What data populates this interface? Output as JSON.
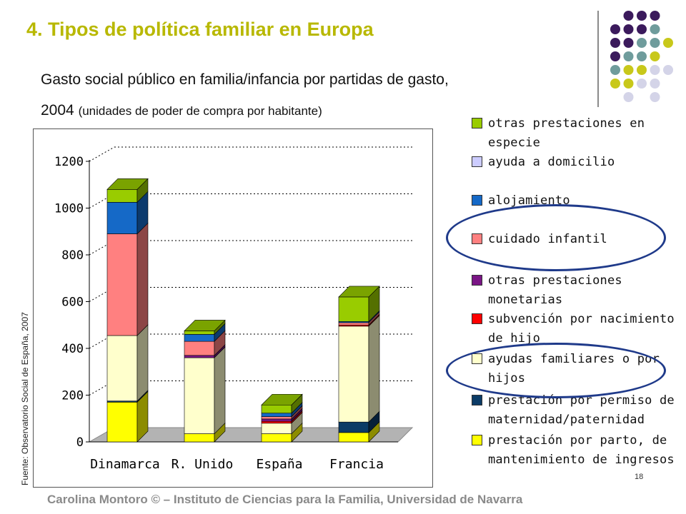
{
  "slide": {
    "title": "4. Tipos de política familiar en Europa",
    "subtitle_line1": "Gasto social público en familia/infancia por partidas de gasto,",
    "subtitle_year": "2004",
    "subtitle_unit": "(unidades de poder de compra por habitante)",
    "source": "Fuente: Observatorio Social de España, 2007",
    "page_number": "18",
    "footer": "Carolina Montoro © – Instituto de Ciencias para la Familia, Universidad de Navarra"
  },
  "colors": {
    "title": "#b8b800",
    "dot_purple": "#3b1a5c",
    "dot_teal": "#6f9c9c",
    "dot_olive": "#c8c81a",
    "dot_lavender": "#d4d4e8",
    "ellipse": "#1f3a8a"
  },
  "chart_data": {
    "type": "bar",
    "stacked": true,
    "three_d": true,
    "ylim": [
      0,
      1200
    ],
    "yticks": [
      0,
      200,
      400,
      600,
      800,
      1000,
      1200
    ],
    "grid": true,
    "categories": [
      "Dinamarca",
      "R. Unido",
      "España",
      "Francia"
    ],
    "series": [
      {
        "name": "prestación por parto, de mantenimiento de ingresos",
        "color": "#ffff00",
        "values": [
          170,
          35,
          35,
          40
        ]
      },
      {
        "name": "prestación por permiso de maternidad/paternidad",
        "color": "#0b3b66",
        "values": [
          5,
          0,
          0,
          45
        ]
      },
      {
        "name": "ayudas familiares o por hijos",
        "color": "#ffffcc",
        "values": [
          280,
          325,
          45,
          410
        ]
      },
      {
        "name": "subvención por nacimiento de hijo",
        "color": "#ff0000",
        "values": [
          0,
          0,
          8,
          5
        ]
      },
      {
        "name": "otras prestaciones monetarias",
        "color": "#7a1585",
        "values": [
          0,
          10,
          10,
          0
        ]
      },
      {
        "name": "cuidado infantil",
        "color": "#ff8080",
        "values": [
          435,
          60,
          10,
          10
        ]
      },
      {
        "name": "alojamiento",
        "color": "#1569c7",
        "values": [
          135,
          30,
          15,
          5
        ]
      },
      {
        "name": "ayuda a domicilio",
        "color": "#ccccff",
        "values": [
          0,
          0,
          0,
          0
        ]
      },
      {
        "name": "otras prestaciones en especie",
        "color": "#99cc00",
        "values": [
          55,
          15,
          35,
          105
        ]
      }
    ]
  },
  "legend": [
    {
      "label": "otras prestaciones en especie",
      "color": "#99cc00"
    },
    {
      "label": "ayuda a domicilio",
      "color": "#ccccff"
    },
    {
      "label": "alojamiento",
      "color": "#1569c7"
    },
    {
      "label": "cuidado infantil",
      "color": "#ff8080"
    },
    {
      "label": "otras prestaciones monetarias",
      "color": "#7a1585"
    },
    {
      "label": "subvención por nacimiento de hijo",
      "color": "#ff0000"
    },
    {
      "label": "ayudas familiares o por hijos",
      "color": "#ffffcc"
    },
    {
      "label": "prestación por permiso de maternidad/paternidad",
      "color": "#0b3b66"
    },
    {
      "label": "prestación por parto, de mantenimiento de ingresos",
      "color": "#ffff00"
    }
  ]
}
